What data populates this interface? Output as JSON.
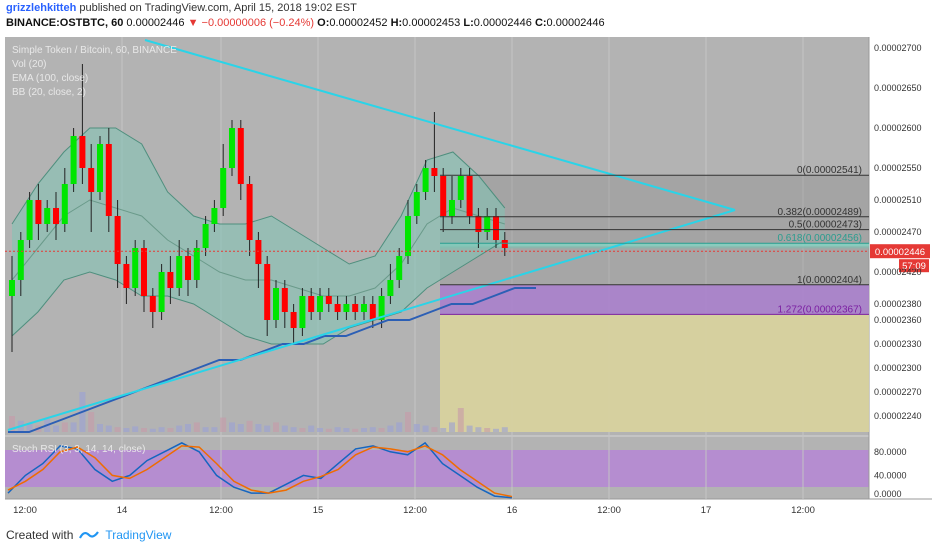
{
  "header": {
    "author": "grizzlehkitteh",
    "published": "published on TradingView.com, April 15, 2018 19:02 EST",
    "symbol": "BINANCE:OSTBTC, 60",
    "last": "0.00002446",
    "change": "▼ −0.00000006 (−0.24%)",
    "o_label": "O:",
    "o_value": "0.00002452",
    "h_label": "H:",
    "h_value": "0.00002453",
    "l_label": "L:",
    "l_value": "0.00002446",
    "c_label": "C:",
    "c_value": "0.00002446"
  },
  "legend": {
    "title": "Simple Token / Bitcoin, 60, BINANCE",
    "vol": "Vol (20)",
    "ema": "EMA (100, close)",
    "bb": "BB (20, close, 2)",
    "stoch": "Stoch RSI (3, 3, 14, 14, close)"
  },
  "footer": {
    "created_with": "Created with",
    "brand": "TradingView"
  },
  "colors": {
    "up": "#00e600",
    "down": "#ff0000",
    "trendline": "#2ad4e8",
    "ema": "#2c5fb5",
    "bb_fill": "#7fc4b5",
    "pane_bg": "#b3b3b3",
    "purple_zone": "#a87ccc",
    "yellow_zone": "#d9d39c",
    "k_line": "#1565c0",
    "d_line": "#ef6c00",
    "stoch_band": "#b680d9"
  },
  "chart_data": [
    {
      "type": "candlestick",
      "title": "Simple Token / Bitcoin, 60, BINANCE",
      "ylim": [
        2.22e-05,
        2.71e-05
      ],
      "y_ticks": [
        "0.00002700",
        "0.00002650",
        "0.00002600",
        "0.00002550",
        "0.00002510",
        "0.00002470",
        "0.00002420",
        "0.00002380",
        "0.00002360",
        "0.00002330",
        "0.00002300",
        "0.00002270",
        "0.00002240"
      ],
      "x_labels": [
        "12:00",
        "14",
        "12:00",
        "15",
        "12:00",
        "16",
        "12:00",
        "17",
        "12:00"
      ],
      "last_price": "0.00002446",
      "countdown": "57:09",
      "fib_levels": [
        {
          "label": "0(0.00002541)",
          "value": 2.541e-05
        },
        {
          "label": "0.382(0.00002489)",
          "value": 2.489e-05
        },
        {
          "label": "0.5(0.00002473)",
          "value": 2.473e-05
        },
        {
          "label": "0.618(0.00002456)",
          "value": 2.456e-05
        },
        {
          "label": "1(0.00002404)",
          "value": 2.404e-05
        },
        {
          "label": "1.272(0.00002367)",
          "value": 2.367e-05
        }
      ],
      "candles": [
        [
          2.39e-05,
          2.41e-05,
          2.32e-05,
          2.44e-05
        ],
        [
          2.41e-05,
          2.46e-05,
          2.39e-05,
          2.47e-05
        ],
        [
          2.46e-05,
          2.51e-05,
          2.45e-05,
          2.52e-05
        ],
        [
          2.51e-05,
          2.48e-05,
          2.46e-05,
          2.53e-05
        ],
        [
          2.48e-05,
          2.5e-05,
          2.47e-05,
          2.51e-05
        ],
        [
          2.5e-05,
          2.48e-05,
          2.46e-05,
          2.52e-05
        ],
        [
          2.48e-05,
          2.53e-05,
          2.47e-05,
          2.55e-05
        ],
        [
          2.53e-05,
          2.59e-05,
          2.52e-05,
          2.6e-05
        ],
        [
          2.59e-05,
          2.55e-05,
          2.53e-05,
          2.68e-05
        ],
        [
          2.55e-05,
          2.52e-05,
          2.47e-05,
          2.58e-05
        ],
        [
          2.52e-05,
          2.58e-05,
          2.51e-05,
          2.59e-05
        ],
        [
          2.58e-05,
          2.49e-05,
          2.47e-05,
          2.6e-05
        ],
        [
          2.49e-05,
          2.43e-05,
          2.4e-05,
          2.51e-05
        ],
        [
          2.43e-05,
          2.4e-05,
          2.38e-05,
          2.44e-05
        ],
        [
          2.4e-05,
          2.45e-05,
          2.39e-05,
          2.46e-05
        ],
        [
          2.45e-05,
          2.39e-05,
          2.37e-05,
          2.46e-05
        ],
        [
          2.39e-05,
          2.37e-05,
          2.35e-05,
          2.4e-05
        ],
        [
          2.37e-05,
          2.42e-05,
          2.36e-05,
          2.43e-05
        ],
        [
          2.42e-05,
          2.4e-05,
          2.38e-05,
          2.44e-05
        ],
        [
          2.4e-05,
          2.44e-05,
          2.39e-05,
          2.46e-05
        ],
        [
          2.44e-05,
          2.41e-05,
          2.39e-05,
          2.45e-05
        ],
        [
          2.41e-05,
          2.45e-05,
          2.4e-05,
          2.46e-05
        ],
        [
          2.45e-05,
          2.48e-05,
          2.44e-05,
          2.49e-05
        ],
        [
          2.48e-05,
          2.5e-05,
          2.47e-05,
          2.51e-05
        ],
        [
          2.5e-05,
          2.55e-05,
          2.49e-05,
          2.58e-05
        ],
        [
          2.55e-05,
          2.6e-05,
          2.54e-05,
          2.61e-05
        ],
        [
          2.6e-05,
          2.53e-05,
          2.51e-05,
          2.61e-05
        ],
        [
          2.53e-05,
          2.46e-05,
          2.44e-05,
          2.54e-05
        ],
        [
          2.46e-05,
          2.43e-05,
          2.4e-05,
          2.47e-05
        ],
        [
          2.43e-05,
          2.36e-05,
          2.34e-05,
          2.44e-05
        ],
        [
          2.36e-05,
          2.4e-05,
          2.35e-05,
          2.41e-05
        ],
        [
          2.4e-05,
          2.37e-05,
          2.35e-05,
          2.41e-05
        ],
        [
          2.37e-05,
          2.35e-05,
          2.33e-05,
          2.38e-05
        ],
        [
          2.35e-05,
          2.39e-05,
          2.34e-05,
          2.4e-05
        ],
        [
          2.39e-05,
          2.37e-05,
          2.36e-05,
          2.4e-05
        ],
        [
          2.37e-05,
          2.39e-05,
          2.36e-05,
          2.4e-05
        ],
        [
          2.39e-05,
          2.38e-05,
          2.37e-05,
          2.4e-05
        ],
        [
          2.38e-05,
          2.37e-05,
          2.36e-05,
          2.39e-05
        ],
        [
          2.37e-05,
          2.38e-05,
          2.36e-05,
          2.39e-05
        ],
        [
          2.38e-05,
          2.37e-05,
          2.36e-05,
          2.39e-05
        ],
        [
          2.37e-05,
          2.38e-05,
          2.36e-05,
          2.39e-05
        ],
        [
          2.38e-05,
          2.36e-05,
          2.35e-05,
          2.39e-05
        ],
        [
          2.36e-05,
          2.39e-05,
          2.35e-05,
          2.4e-05
        ],
        [
          2.39e-05,
          2.41e-05,
          2.38e-05,
          2.43e-05
        ],
        [
          2.41e-05,
          2.44e-05,
          2.4e-05,
          2.45e-05
        ],
        [
          2.44e-05,
          2.49e-05,
          2.43e-05,
          2.51e-05
        ],
        [
          2.49e-05,
          2.52e-05,
          2.48e-05,
          2.53e-05
        ],
        [
          2.52e-05,
          2.55e-05,
          2.51e-05,
          2.56e-05
        ],
        [
          2.55e-05,
          2.54e-05,
          2.52e-05,
          2.62e-05
        ],
        [
          2.54e-05,
          2.49e-05,
          2.47e-05,
          2.55e-05
        ],
        [
          2.49e-05,
          2.51e-05,
          2.48e-05,
          2.54e-05
        ],
        [
          2.51e-05,
          2.54e-05,
          2.5e-05,
          2.55e-05
        ],
        [
          2.54e-05,
          2.49e-05,
          2.48e-05,
          2.55e-05
        ],
        [
          2.49e-05,
          2.47e-05,
          2.45e-05,
          2.5e-05
        ],
        [
          2.47e-05,
          2.49e-05,
          2.46e-05,
          2.5e-05
        ],
        [
          2.49e-05,
          2.46e-05,
          2.45e-05,
          2.5e-05
        ],
        [
          2.46e-05,
          2.45e-05,
          2.44e-05,
          2.47e-05
        ]
      ],
      "volume": [
        0.2,
        0.14,
        0.1,
        0.08,
        0.16,
        0.08,
        0.12,
        0.12,
        0.5,
        0.25,
        0.1,
        0.08,
        0.06,
        0.05,
        0.07,
        0.05,
        0.04,
        0.06,
        0.05,
        0.08,
        0.1,
        0.12,
        0.06,
        0.06,
        0.18,
        0.12,
        0.1,
        0.14,
        0.1,
        0.08,
        0.12,
        0.08,
        0.06,
        0.05,
        0.08,
        0.05,
        0.04,
        0.06,
        0.05,
        0.04,
        0.05,
        0.06,
        0.05,
        0.08,
        0.12,
        0.25,
        0.1,
        0.08,
        0.06,
        0.05,
        0.12,
        0.3,
        0.08,
        0.06,
        0.05,
        0.04,
        0.06
      ],
      "ema100": [
        2.22e-05,
        2.22e-05,
        2.23e-05,
        2.24e-05,
        2.25e-05,
        2.26e-05,
        2.27e-05,
        2.28e-05,
        2.29e-05,
        2.3e-05,
        2.31e-05,
        2.31e-05,
        2.32e-05,
        2.33e-05,
        2.33e-05,
        2.34e-05,
        2.34e-05,
        2.35e-05,
        2.36e-05,
        2.36e-05,
        2.37e-05,
        2.38e-05,
        2.38e-05,
        2.39e-05,
        2.4e-05,
        2.4e-05
      ],
      "bb_upper": [
        2.48e-05,
        2.53e-05,
        2.57e-05,
        2.6e-05,
        2.6e-05,
        2.58e-05,
        2.52e-05,
        2.49e-05,
        2.48e-05,
        2.48e-05,
        2.49e-05,
        2.47e-05,
        2.45e-05,
        2.43e-05,
        2.44e-05,
        2.49e-05,
        2.56e-05,
        2.57e-05,
        2.54e-05,
        2.5e-05
      ],
      "bb_basis": [
        2.41e-05,
        2.45e-05,
        2.49e-05,
        2.51e-05,
        2.5e-05,
        2.49e-05,
        2.46e-05,
        2.44e-05,
        2.42e-05,
        2.41e-05,
        2.41e-05,
        2.4e-05,
        2.39e-05,
        2.39e-05,
        2.4e-05,
        2.43e-05,
        2.48e-05,
        2.5e-05,
        2.49e-05,
        2.48e-05
      ],
      "bb_lower": [
        2.34e-05,
        2.37e-05,
        2.41e-05,
        2.42e-05,
        2.41e-05,
        2.39e-05,
        2.39e-05,
        2.38e-05,
        2.36e-05,
        2.34e-05,
        2.33e-05,
        2.33e-05,
        2.33e-05,
        2.35e-05,
        2.36e-05,
        2.37e-05,
        2.4e-05,
        2.42e-05,
        2.44e-05,
        2.46e-05
      ]
    },
    {
      "type": "line",
      "title": "Stoch RSI (3, 3, 14, 14, close)",
      "ylim": [
        0,
        100
      ],
      "y_ticks": [
        "80.0000",
        "40.0000",
        "0.0000"
      ],
      "series": [
        {
          "name": "K",
          "values": [
            10,
            40,
            60,
            90,
            85,
            50,
            30,
            40,
            65,
            80,
            95,
            80,
            40,
            20,
            10,
            10,
            25,
            40,
            35,
            60,
            85,
            90,
            80,
            75,
            95,
            60,
            40,
            20,
            5,
            2
          ]
        },
        {
          "name": "D",
          "values": [
            15,
            30,
            50,
            80,
            88,
            70,
            40,
            35,
            50,
            70,
            90,
            88,
            60,
            30,
            15,
            10,
            15,
            30,
            38,
            50,
            75,
            88,
            85,
            80,
            90,
            75,
            50,
            30,
            10,
            4
          ]
        }
      ]
    }
  ]
}
